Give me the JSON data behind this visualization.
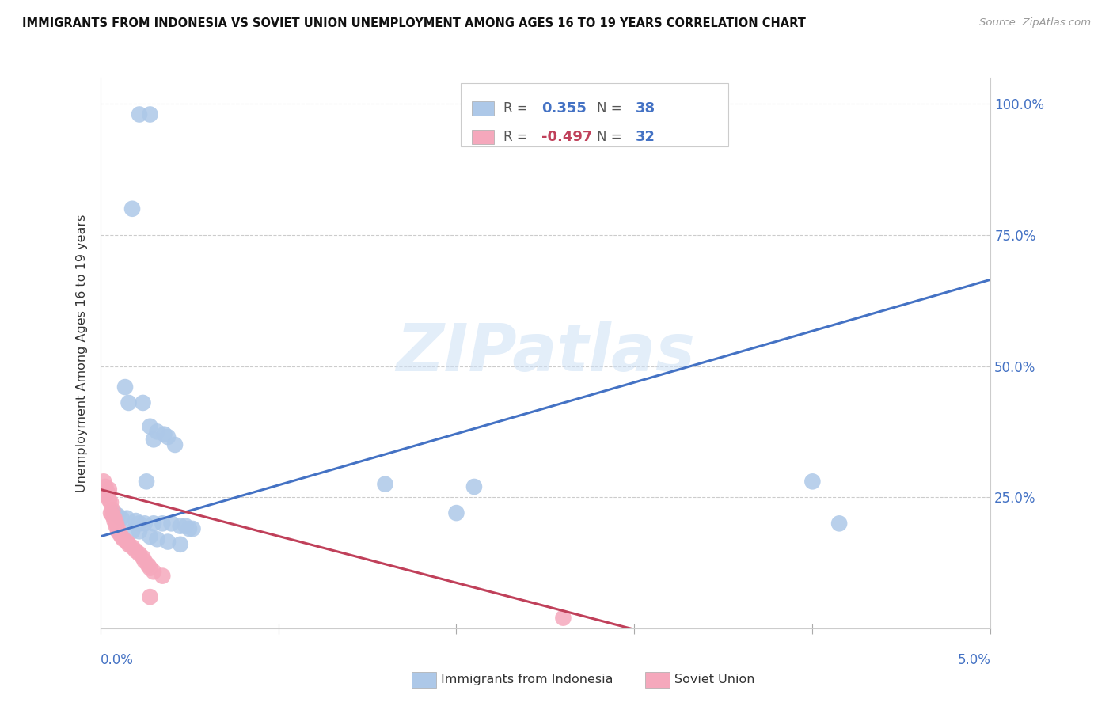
{
  "title": "IMMIGRANTS FROM INDONESIA VS SOVIET UNION UNEMPLOYMENT AMONG AGES 16 TO 19 YEARS CORRELATION CHART",
  "source": "Source: ZipAtlas.com",
  "ylabel": "Unemployment Among Ages 16 to 19 years",
  "legend_indonesia": "Immigrants from Indonesia",
  "legend_soviet": "Soviet Union",
  "R_indonesia": 0.355,
  "N_indonesia": 38,
  "R_soviet": -0.497,
  "N_soviet": 32,
  "color_indonesia": "#adc8e8",
  "color_soviet": "#f5a8bc",
  "color_line_indonesia": "#4472c4",
  "color_line_soviet": "#c0405a",
  "color_r_indonesia": "#4472c4",
  "color_r_soviet": "#c0405a",
  "color_n": "#4472c4",
  "watermark": "ZIPatlas",
  "background": "#ffffff",
  "x_lim": [
    0.0,
    0.05
  ],
  "y_lim": [
    0.0,
    1.05
  ],
  "indo_line_x": [
    0.0,
    0.05
  ],
  "indo_line_y": [
    0.175,
    0.665
  ],
  "soviet_line_x": [
    0.0,
    0.032
  ],
  "soviet_line_y": [
    0.265,
    -0.02
  ],
  "indonesia_points": [
    [
      0.0022,
      0.98
    ],
    [
      0.0028,
      0.98
    ],
    [
      0.0018,
      0.8
    ],
    [
      0.0014,
      0.46
    ],
    [
      0.0016,
      0.43
    ],
    [
      0.0024,
      0.43
    ],
    [
      0.0028,
      0.385
    ],
    [
      0.0032,
      0.375
    ],
    [
      0.0036,
      0.37
    ],
    [
      0.0038,
      0.365
    ],
    [
      0.003,
      0.36
    ],
    [
      0.0042,
      0.35
    ],
    [
      0.0026,
      0.28
    ],
    [
      0.016,
      0.275
    ],
    [
      0.021,
      0.27
    ],
    [
      0.02,
      0.22
    ],
    [
      0.0008,
      0.22
    ],
    [
      0.001,
      0.215
    ],
    [
      0.0012,
      0.21
    ],
    [
      0.0015,
      0.21
    ],
    [
      0.002,
      0.205
    ],
    [
      0.0022,
      0.2
    ],
    [
      0.0025,
      0.2
    ],
    [
      0.003,
      0.2
    ],
    [
      0.0035,
      0.2
    ],
    [
      0.004,
      0.2
    ],
    [
      0.0045,
      0.195
    ],
    [
      0.0048,
      0.195
    ],
    [
      0.005,
      0.19
    ],
    [
      0.0052,
      0.19
    ],
    [
      0.0018,
      0.185
    ],
    [
      0.0022,
      0.185
    ],
    [
      0.0028,
      0.175
    ],
    [
      0.0032,
      0.17
    ],
    [
      0.0038,
      0.165
    ],
    [
      0.0045,
      0.16
    ],
    [
      0.04,
      0.28
    ],
    [
      0.0415,
      0.2
    ]
  ],
  "soviet_points": [
    [
      0.0002,
      0.28
    ],
    [
      0.0003,
      0.27
    ],
    [
      0.0003,
      0.255
    ],
    [
      0.0004,
      0.26
    ],
    [
      0.0005,
      0.265
    ],
    [
      0.0005,
      0.245
    ],
    [
      0.0006,
      0.24
    ],
    [
      0.0006,
      0.22
    ],
    [
      0.0007,
      0.225
    ],
    [
      0.0007,
      0.215
    ],
    [
      0.0008,
      0.21
    ],
    [
      0.0008,
      0.205
    ],
    [
      0.0009,
      0.2
    ],
    [
      0.0009,
      0.195
    ],
    [
      0.001,
      0.19
    ],
    [
      0.001,
      0.185
    ],
    [
      0.0011,
      0.18
    ],
    [
      0.0012,
      0.175
    ],
    [
      0.0013,
      0.17
    ],
    [
      0.0015,
      0.165
    ],
    [
      0.0016,
      0.16
    ],
    [
      0.0018,
      0.155
    ],
    [
      0.002,
      0.148
    ],
    [
      0.0022,
      0.142
    ],
    [
      0.0024,
      0.135
    ],
    [
      0.0025,
      0.128
    ],
    [
      0.0027,
      0.12
    ],
    [
      0.0028,
      0.115
    ],
    [
      0.003,
      0.108
    ],
    [
      0.0035,
      0.1
    ],
    [
      0.0028,
      0.06
    ],
    [
      0.026,
      0.02
    ]
  ]
}
